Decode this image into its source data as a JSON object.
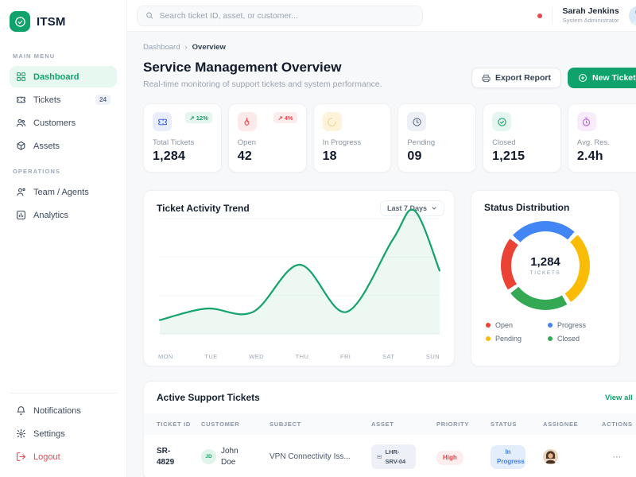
{
  "brand": {
    "name": "ITSM"
  },
  "topbar": {
    "search_placeholder": "Search ticket ID, asset, or customer...",
    "user": {
      "name": "Sarah Jenkins",
      "role": "System Administrator"
    }
  },
  "sidebar": {
    "sections": [
      {
        "label": "MAIN MENU",
        "items": [
          {
            "label": "Dashboard",
            "active": true
          },
          {
            "label": "Tickets",
            "badge": "24"
          },
          {
            "label": "Customers"
          },
          {
            "label": "Assets"
          }
        ]
      },
      {
        "label": "OPERATIONS",
        "items": [
          {
            "label": "Team / Agents"
          },
          {
            "label": "Analytics"
          }
        ]
      }
    ],
    "footer": [
      {
        "label": "Notifications"
      },
      {
        "label": "Settings"
      },
      {
        "label": "Logout"
      }
    ]
  },
  "header": {
    "breadcrumb": {
      "parent": "Dashboard",
      "separator": "›",
      "current": "Overview"
    },
    "title": "Service Management Overview",
    "subtitle": "Real-time monitoring of support tickets and system performance.",
    "actions": {
      "export": "Export Report",
      "new_ticket": "New Ticket"
    }
  },
  "kpis": [
    {
      "label": "Total Tickets",
      "value": "1,284",
      "badge": "↗ 12%",
      "badge_color": "#12A06B",
      "icon": "ticket-icon"
    },
    {
      "label": "Open",
      "value": "42",
      "badge": "↗ 4%",
      "badge_color": "#E5484D",
      "icon": "flame-icon"
    },
    {
      "label": "In Progress",
      "value": "18",
      "icon": "loader-icon"
    },
    {
      "label": "Pending",
      "value": "09",
      "icon": "clock-icon"
    },
    {
      "label": "Closed",
      "value": "1,215",
      "icon": "check-circle-icon"
    },
    {
      "label": "Avg. Res.",
      "value": "2.4h",
      "icon": "timer-icon"
    }
  ],
  "chart_data": [
    {
      "type": "area",
      "title": "Ticket Activity Trend",
      "range_label": "Last 7 Days",
      "x": [
        "MON",
        "TUE",
        "WED",
        "THU",
        "FRI",
        "SAT",
        "SUN"
      ],
      "values": [
        12,
        22,
        19,
        60,
        19,
        85,
        55
      ],
      "draw_points": [
        {
          "t": 0,
          "v": 12
        },
        {
          "t": 0.167,
          "v": 22
        },
        {
          "t": 0.333,
          "v": 19
        },
        {
          "t": 0.5,
          "v": 60
        },
        {
          "t": 0.667,
          "v": 19
        },
        {
          "t": 0.833,
          "v": 82
        },
        {
          "t": 0.91,
          "v": 107
        },
        {
          "t": 1,
          "v": 55
        }
      ],
      "line_color": "#14A36B",
      "fill_color": "rgba(20,163,107,0.08)",
      "grid": true,
      "ylim": [
        0,
        110
      ],
      "legend_position": "none"
    },
    {
      "type": "pie",
      "title": "Status Distribution",
      "center_value": "1,284",
      "center_label": "TICKETS",
      "start_angle": -50,
      "segments": [
        {
          "label": "Progress",
          "color": "#4285F4",
          "pct": 26
        },
        {
          "label": "Pending",
          "color": "#FBBC05",
          "pct": 29
        },
        {
          "label": "Closed",
          "color": "#34A853",
          "pct": 24
        },
        {
          "label": "Open",
          "color": "#EA4335",
          "pct": 21
        }
      ],
      "legend": [
        {
          "label": "Open",
          "color": "#EA4335"
        },
        {
          "label": "Progress",
          "color": "#4285F4"
        },
        {
          "label": "Pending",
          "color": "#FBBC05"
        },
        {
          "label": "Closed",
          "color": "#34A853"
        }
      ],
      "legend_position": "bottom"
    }
  ],
  "tickets_table": {
    "title": "Active Support Tickets",
    "view_all": "View all",
    "columns": [
      "TICKET ID",
      "CUSTOMER",
      "SUBJECT",
      "ASSET",
      "PRIORITY",
      "STATUS",
      "ASSIGNEE",
      "ACTIONS"
    ],
    "rows": [
      {
        "ticket_id": "SR-4829",
        "customer_initials": "JD",
        "customer_name": "John Doe",
        "subject": "VPN Connectivity Iss...",
        "asset": "LHR-SRV-04",
        "priority": "High",
        "status": "In Progress",
        "actions": "⋯"
      }
    ]
  },
  "colors": {
    "primary": "#0FA36B",
    "danger": "#E5484D",
    "info": "#3B82F6",
    "background": "#F7F8FA"
  }
}
